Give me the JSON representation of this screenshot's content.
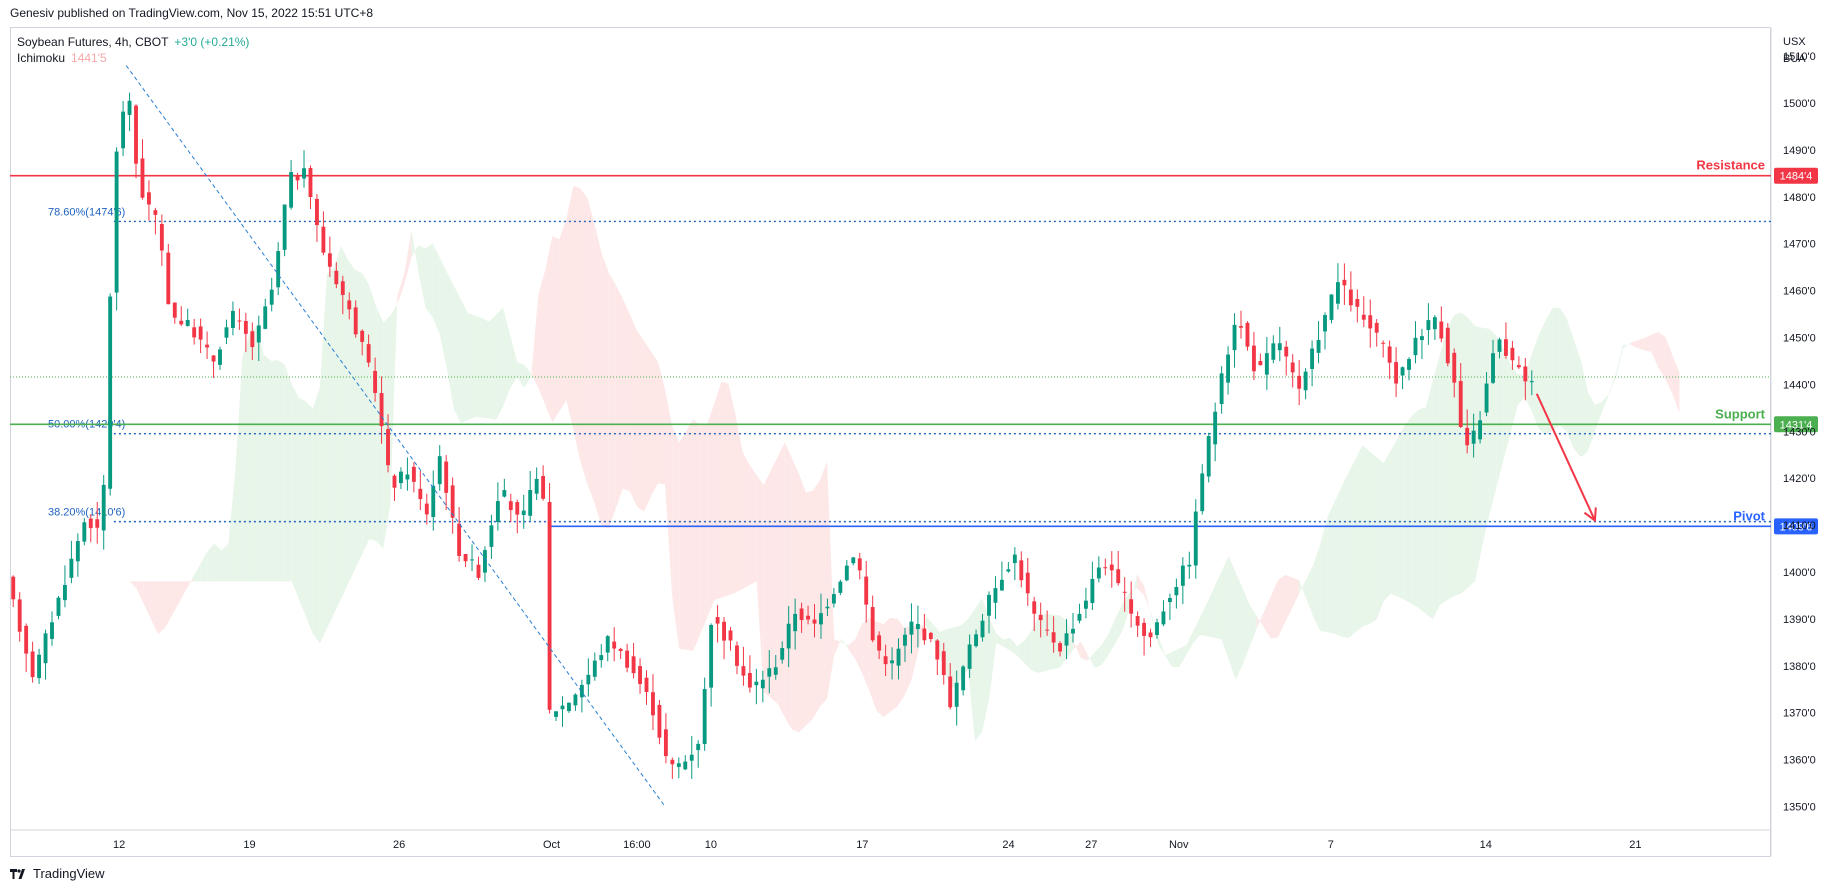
{
  "header": {
    "publish_line": "Genesiv published on TradingView.com, Nov 15, 2022 15:51 UTC+8"
  },
  "legend": {
    "symbol": "Soybean Futures, 4h, CBOT",
    "change": "+3'0 (+0.21%)",
    "indicator_name": "Ichimoku",
    "indicator_value": "1441'5"
  },
  "currency": {
    "line1": "USX",
    "line2": "BUA"
  },
  "footer": {
    "brand": "TradingView"
  },
  "chart_data": {
    "type": "candlestick",
    "symbol": "Soybean Futures",
    "interval": "4h",
    "exchange": "CBOT",
    "y_axis": {
      "ticks": [
        1350,
        1360,
        1370,
        1380,
        1390,
        1400,
        1410,
        1420,
        1430,
        1440,
        1450,
        1460,
        1470,
        1480,
        1490,
        1500,
        1510
      ],
      "tick_labels": [
        "1350'0",
        "1360'0",
        "1370'0",
        "1380'0",
        "1390'0",
        "1400'0",
        "1410'0",
        "1420'0",
        "1430'0",
        "1440'0",
        "1450'0",
        "1460'0",
        "1470'0",
        "1480'0",
        "1490'0",
        "1500'0",
        "1510'0"
      ],
      "range": [
        1345,
        1516
      ]
    },
    "x_axis": {
      "ticks": [
        {
          "label": "12",
          "pos": 0.062
        },
        {
          "label": "19",
          "pos": 0.136
        },
        {
          "label": "26",
          "pos": 0.221
        },
        {
          "label": "Oct",
          "pos": 0.3075
        },
        {
          "label": "16:00",
          "pos": 0.356
        },
        {
          "label": "10",
          "pos": 0.398
        },
        {
          "label": "17",
          "pos": 0.484
        },
        {
          "label": "24",
          "pos": 0.567
        },
        {
          "label": "27",
          "pos": 0.614
        },
        {
          "label": "Nov",
          "pos": 0.6637
        },
        {
          "label": "7",
          "pos": 0.75
        },
        {
          "label": "14",
          "pos": 0.838
        },
        {
          "label": "21",
          "pos": 0.923
        }
      ]
    },
    "horizontal_levels": [
      {
        "label": "Resistance",
        "axis_label": "1484'4",
        "value": 1484.5,
        "color": "#f23645"
      },
      {
        "label": "Support",
        "axis_label": "1431'4",
        "value": 1431.5,
        "color": "#4caf50"
      },
      {
        "label": "Pivot",
        "axis_label": "1409'6",
        "value": 1409.75,
        "color": "#2962ff"
      }
    ],
    "fibonacci_levels": [
      {
        "label": "78.60%(1474'6)",
        "value": 1474.75
      },
      {
        "label": "50.00%(1429'4)",
        "value": 1429.5
      },
      {
        "label": "38.20%(1410'6)",
        "value": 1410.75
      }
    ],
    "last_price_line": 1441.6,
    "swing_trendline": {
      "from": {
        "pos": 0.066,
        "value": 1508
      },
      "to": {
        "pos": 0.372,
        "value": 1350
      }
    },
    "projection_arrow": {
      "from": {
        "pos": 0.867,
        "value": 1438
      },
      "to": {
        "pos": 0.9,
        "value": 1411
      }
    },
    "colors": {
      "up": "#089981",
      "down": "#f23645",
      "fib": "#1e63c0",
      "cloud_bull": "#e8f5e9",
      "cloud_bear": "#fde7e7"
    },
    "key_points": [
      {
        "pos": 0.0,
        "value": 1398
      },
      {
        "pos": 0.015,
        "value": 1378
      },
      {
        "pos": 0.03,
        "value": 1395
      },
      {
        "pos": 0.045,
        "value": 1412
      },
      {
        "pos": 0.052,
        "value": 1408
      },
      {
        "pos": 0.057,
        "value": 1425
      },
      {
        "pos": 0.06,
        "value": 1485
      },
      {
        "pos": 0.064,
        "value": 1492
      },
      {
        "pos": 0.068,
        "value": 1505
      },
      {
        "pos": 0.075,
        "value": 1482
      },
      {
        "pos": 0.085,
        "value": 1475
      },
      {
        "pos": 0.093,
        "value": 1455
      },
      {
        "pos": 0.105,
        "value": 1452
      },
      {
        "pos": 0.117,
        "value": 1445
      },
      {
        "pos": 0.128,
        "value": 1455
      },
      {
        "pos": 0.14,
        "value": 1448
      },
      {
        "pos": 0.152,
        "value": 1462
      },
      {
        "pos": 0.16,
        "value": 1484
      },
      {
        "pos": 0.17,
        "value": 1485
      },
      {
        "pos": 0.178,
        "value": 1470
      },
      {
        "pos": 0.19,
        "value": 1460
      },
      {
        "pos": 0.2,
        "value": 1450
      },
      {
        "pos": 0.21,
        "value": 1438
      },
      {
        "pos": 0.218,
        "value": 1418
      },
      {
        "pos": 0.228,
        "value": 1422
      },
      {
        "pos": 0.238,
        "value": 1412
      },
      {
        "pos": 0.246,
        "value": 1425
      },
      {
        "pos": 0.256,
        "value": 1405
      },
      {
        "pos": 0.268,
        "value": 1400
      },
      {
        "pos": 0.28,
        "value": 1418
      },
      {
        "pos": 0.292,
        "value": 1410
      },
      {
        "pos": 0.304,
        "value": 1425
      },
      {
        "pos": 0.307,
        "value": 1370
      },
      {
        "pos": 0.318,
        "value": 1372
      },
      {
        "pos": 0.33,
        "value": 1378
      },
      {
        "pos": 0.342,
        "value": 1386
      },
      {
        "pos": 0.354,
        "value": 1380
      },
      {
        "pos": 0.366,
        "value": 1372
      },
      {
        "pos": 0.376,
        "value": 1358
      },
      {
        "pos": 0.386,
        "value": 1360
      },
      {
        "pos": 0.394,
        "value": 1365
      },
      {
        "pos": 0.4,
        "value": 1390
      },
      {
        "pos": 0.41,
        "value": 1385
      },
      {
        "pos": 0.422,
        "value": 1375
      },
      {
        "pos": 0.436,
        "value": 1380
      },
      {
        "pos": 0.448,
        "value": 1392
      },
      {
        "pos": 0.458,
        "value": 1388
      },
      {
        "pos": 0.472,
        "value": 1398
      },
      {
        "pos": 0.482,
        "value": 1405
      },
      {
        "pos": 0.492,
        "value": 1385
      },
      {
        "pos": 0.502,
        "value": 1380
      },
      {
        "pos": 0.515,
        "value": 1390
      },
      {
        "pos": 0.528,
        "value": 1383
      },
      {
        "pos": 0.536,
        "value": 1372
      },
      {
        "pos": 0.548,
        "value": 1385
      },
      {
        "pos": 0.56,
        "value": 1396
      },
      {
        "pos": 0.572,
        "value": 1404
      },
      {
        "pos": 0.584,
        "value": 1390
      },
      {
        "pos": 0.598,
        "value": 1384
      },
      {
        "pos": 0.61,
        "value": 1392
      },
      {
        "pos": 0.622,
        "value": 1403
      },
      {
        "pos": 0.634,
        "value": 1395
      },
      {
        "pos": 0.648,
        "value": 1385
      },
      {
        "pos": 0.66,
        "value": 1395
      },
      {
        "pos": 0.672,
        "value": 1403
      },
      {
        "pos": 0.678,
        "value": 1420
      },
      {
        "pos": 0.688,
        "value": 1438
      },
      {
        "pos": 0.698,
        "value": 1455
      },
      {
        "pos": 0.71,
        "value": 1442
      },
      {
        "pos": 0.722,
        "value": 1450
      },
      {
        "pos": 0.734,
        "value": 1438
      },
      {
        "pos": 0.746,
        "value": 1452
      },
      {
        "pos": 0.756,
        "value": 1462
      },
      {
        "pos": 0.768,
        "value": 1455
      },
      {
        "pos": 0.78,
        "value": 1449
      },
      {
        "pos": 0.79,
        "value": 1440
      },
      {
        "pos": 0.8,
        "value": 1450
      },
      {
        "pos": 0.812,
        "value": 1455
      },
      {
        "pos": 0.822,
        "value": 1440
      },
      {
        "pos": 0.828,
        "value": 1425
      },
      {
        "pos": 0.836,
        "value": 1432
      },
      {
        "pos": 0.846,
        "value": 1450
      },
      {
        "pos": 0.856,
        "value": 1444
      },
      {
        "pos": 0.866,
        "value": 1440
      }
    ]
  }
}
